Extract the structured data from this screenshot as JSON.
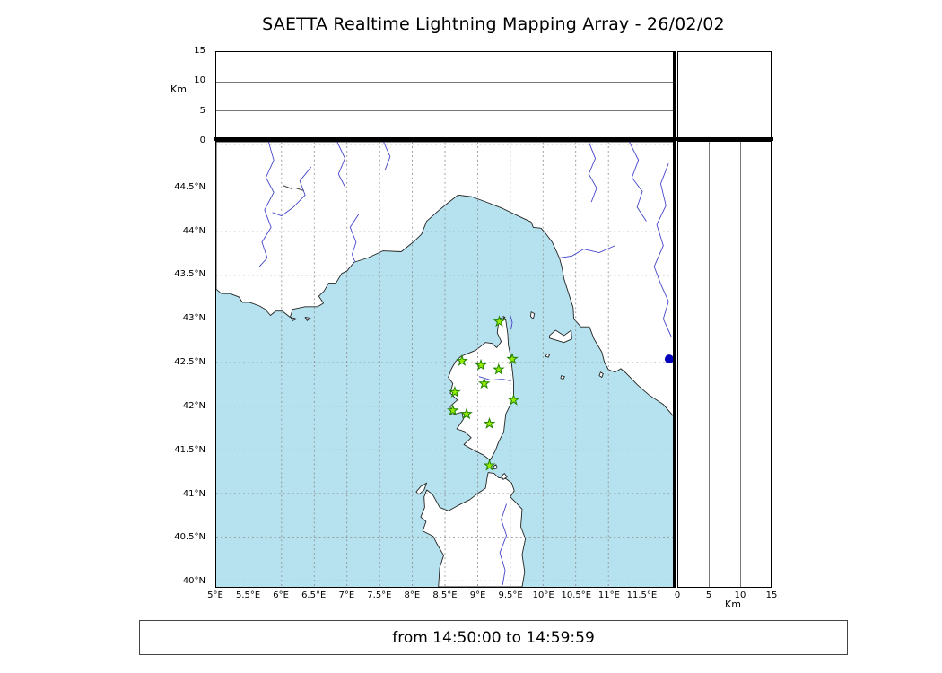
{
  "title": "SAETTA Realtime Lightning Mapping Array - 26/02/02",
  "status_bar": {
    "text": "from 14:50:00 to 14:59:59"
  },
  "altitude_axis": {
    "label": "Km",
    "min": 0,
    "max": 15,
    "ticks": [
      0,
      5,
      10,
      15
    ]
  },
  "map": {
    "lon_min": 5.0,
    "lon_max": 12.0,
    "lat_min": 39.93,
    "lat_max": 45.03,
    "grid_step_deg": 0.5,
    "lon_tick_labels": [
      "5°E",
      "5.5°E",
      "6°E",
      "6.5°E",
      "7°E",
      "7.5°E",
      "8°E",
      "8.5°E",
      "9°E",
      "9.5°E",
      "10°E",
      "10.5°E",
      "11°E",
      "11.5°E"
    ],
    "lat_tick_labels": [
      "44.5°N",
      "44°N",
      "43.5°N",
      "43°N",
      "42.5°N",
      "42°N",
      "41.5°N",
      "41°N",
      "40.5°N",
      "40°N"
    ],
    "colors": {
      "sea": "#b5e2ee",
      "land": "#ffffff",
      "coast": "#222222",
      "grid": "#8a8a8a",
      "river": "#4444cc",
      "station_fill": "#99ee00",
      "station_edge": "#1e8200",
      "marker": "#0000bb"
    },
    "stations": [
      {
        "lon": 9.33,
        "lat": 42.97
      },
      {
        "lon": 8.76,
        "lat": 42.52
      },
      {
        "lon": 9.05,
        "lat": 42.47
      },
      {
        "lon": 9.32,
        "lat": 42.42
      },
      {
        "lon": 9.53,
        "lat": 42.54
      },
      {
        "lon": 9.1,
        "lat": 42.26
      },
      {
        "lon": 8.65,
        "lat": 42.16
      },
      {
        "lon": 9.55,
        "lat": 42.07
      },
      {
        "lon": 8.62,
        "lat": 41.95
      },
      {
        "lon": 8.83,
        "lat": 41.91
      },
      {
        "lon": 9.18,
        "lat": 41.8
      },
      {
        "lon": 9.18,
        "lat": 41.32
      }
    ],
    "coast_marker": {
      "lon": 11.93,
      "lat": 42.54
    }
  }
}
